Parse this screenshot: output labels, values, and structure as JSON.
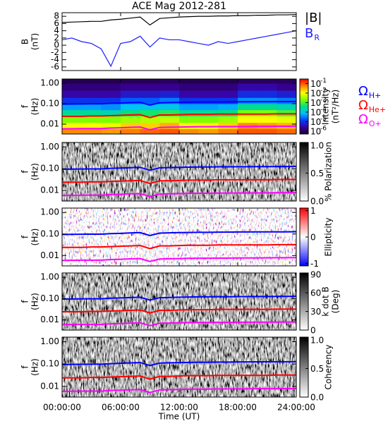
{
  "chart_data": [
    {
      "type": "line",
      "title": "ACE Mag 2012-281",
      "ylabel": [
        "B",
        "(nT)"
      ],
      "ylim": [
        -7,
        9
      ],
      "yticks": [
        8,
        6,
        4,
        2,
        0,
        -2,
        -4,
        -6
      ],
      "x": [
        0,
        1,
        2,
        3,
        4,
        5,
        6,
        7,
        8,
        9,
        10,
        11,
        12,
        13,
        14,
        15,
        16,
        17,
        18,
        19,
        20,
        21,
        22,
        23,
        24
      ],
      "series": [
        {
          "name": "|B|",
          "color": "#000000",
          "values": [
            6.3,
            6.4,
            6.5,
            6.6,
            6.6,
            7.0,
            7.2,
            7.5,
            7.8,
            5.6,
            7.4,
            7.6,
            7.8,
            7.9,
            8.0,
            8.0,
            8.1,
            8.1,
            8.2,
            8.2,
            8.3,
            8.3,
            8.4,
            8.4,
            8.5
          ]
        },
        {
          "name": "B",
          "subscript": "R",
          "color": "#1f1fff",
          "values": [
            1.5,
            2.0,
            1.0,
            0.5,
            -1.0,
            -5.8,
            0.5,
            1.0,
            2.5,
            -0.5,
            2.0,
            1.5,
            1.5,
            1.0,
            0.5,
            0.0,
            1.0,
            0.5,
            1.0,
            1.5,
            2.0,
            2.5,
            3.0,
            3.5,
            4.0
          ]
        }
      ]
    },
    {
      "type": "heatmap",
      "ylabel": [
        "f",
        "(Hz)"
      ],
      "log": true,
      "ylim": [
        0.0033,
        1.6
      ],
      "yticks": [
        {
          "value": 1,
          "label": "1.00"
        },
        {
          "value": 0.1,
          "label": "0.10"
        },
        0.01
      ],
      "t_bins": [
        0,
        2,
        4,
        6,
        8,
        10,
        12,
        14,
        16,
        18,
        20,
        22,
        24
      ],
      "f_bins": [
        0.0033,
        0.006,
        0.012,
        0.025,
        0.05,
        0.1,
        0.2,
        0.45,
        1.0,
        1.6
      ],
      "z": [
        [
          0.05,
          0.05,
          0.04,
          0.06,
          0.08,
          0.1,
          0.05,
          0.04,
          0.06,
          0.1,
          0.1,
          0.08
        ],
        [
          0.01,
          0.01,
          0.008,
          0.02,
          0.02,
          0.03,
          0.01,
          0.01,
          0.02,
          0.05,
          0.04,
          0.03
        ],
        [
          0.002,
          0.002,
          0.002,
          0.003,
          0.004,
          0.005,
          0.002,
          0.002,
          0.003,
          0.01,
          0.01,
          0.008
        ],
        [
          0.0003,
          0.0003,
          0.0002,
          0.0004,
          0.0005,
          0.0006,
          0.0003,
          0.0003,
          0.0004,
          0.002,
          0.002,
          0.001
        ],
        [
          5e-05,
          5e-05,
          4e-05,
          8e-05,
          0.0001,
          0.0001,
          5e-05,
          5e-05,
          6e-05,
          0.0003,
          0.0003,
          0.0002
        ],
        [
          1e-05,
          1e-05,
          1e-05,
          2e-05,
          2e-05,
          3e-05,
          1e-05,
          1e-05,
          1e-05,
          4e-05,
          4e-05,
          3e-05
        ],
        [
          3e-06,
          3e-06,
          3e-06,
          5e-06,
          5e-06,
          6e-06,
          3e-06,
          3e-06,
          3e-06,
          8e-06,
          8e-06,
          6e-06
        ],
        [
          1.5e-06,
          1.5e-06,
          1.5e-06,
          2e-06,
          2e-06,
          2e-06,
          1.5e-06,
          1.5e-06,
          1.5e-06,
          3e-06,
          3e-06,
          2e-06
        ],
        [
          8e-07,
          8e-07,
          8e-07,
          9e-07,
          9e-07,
          1e-06,
          8e-07,
          8e-07,
          8e-07,
          1e-06,
          1e-06,
          1e-06
        ]
      ],
      "colormap_name": "rainbow",
      "colormap": [
        "#1a0030",
        "#3b00a0",
        "#0040ff",
        "#00c0ff",
        "#00e080",
        "#80ff00",
        "#ffff00",
        "#ff8000",
        "#ff0000"
      ],
      "colorbar": {
        "log": true,
        "lim": [
          5e-07,
          0.3
        ],
        "label": [
          "Intensity",
          "(nT²/Hz)"
        ],
        "ticks": [
          {
            "value": 0.1,
            "label": "10",
            "exponent": "-1"
          },
          {
            "value": 0.01,
            "label": "10",
            "exponent": "-2"
          },
          {
            "value": 0.001,
            "label": "10",
            "exponent": "-3"
          },
          {
            "value": 0.0001,
            "label": "10",
            "exponent": "-4"
          },
          {
            "value": 1e-05,
            "label": "10",
            "exponent": "-5"
          },
          {
            "value": 1e-06,
            "label": "10",
            "exponent": "-6"
          }
        ]
      },
      "x": [
        0,
        1,
        2,
        3,
        4,
        5,
        6,
        7,
        8,
        9,
        10,
        11,
        12,
        13,
        14,
        15,
        16,
        17,
        18,
        19,
        20,
        21,
        22,
        23,
        24
      ],
      "series": [
        {
          "name": "Ω",
          "subscript": "H+",
          "color": "#0000ff",
          "values": [
            0.095,
            0.096,
            0.097,
            0.098,
            0.098,
            0.104,
            0.107,
            0.112,
            0.116,
            0.085,
            0.11,
            0.113,
            0.116,
            0.118,
            0.12,
            0.12,
            0.122,
            0.122,
            0.124,
            0.124,
            0.125,
            0.125,
            0.126,
            0.126,
            0.128
          ]
        },
        {
          "name": "Ω",
          "subscript": "He+",
          "color": "#ff0000",
          "values": [
            0.024,
            0.024,
            0.024,
            0.025,
            0.025,
            0.026,
            0.027,
            0.028,
            0.029,
            0.021,
            0.028,
            0.028,
            0.029,
            0.03,
            0.03,
            0.03,
            0.031,
            0.031,
            0.031,
            0.031,
            0.031,
            0.031,
            0.032,
            0.032,
            0.032
          ]
        },
        {
          "name": "Ω",
          "subscript": "O+",
          "color": "#ff00ff",
          "values": [
            0.0059,
            0.006,
            0.0061,
            0.0061,
            0.0061,
            0.0065,
            0.0067,
            0.007,
            0.0072,
            0.0053,
            0.0069,
            0.0071,
            0.0072,
            0.0074,
            0.0075,
            0.0075,
            0.0076,
            0.0076,
            0.0077,
            0.0077,
            0.0078,
            0.0078,
            0.0079,
            0.0079,
            0.008
          ]
        }
      ]
    },
    {
      "type": "spectrogram",
      "ylabel": [
        "f",
        "(Hz)"
      ],
      "log": true,
      "ylim": [
        0.0033,
        1.6
      ],
      "yticks": [
        {
          "value": 1,
          "label": "1.00"
        },
        {
          "value": 0.1,
          "label": "0.10"
        },
        0.01
      ],
      "colormap_name": "gray",
      "colormap": [
        "#ffffff",
        "#000000"
      ],
      "colorbar": {
        "log": false,
        "lim": [
          0,
          1.05
        ],
        "label": [
          "% Polarization"
        ],
        "ticks": [
          {
            "value": 1,
            "label": "1.0"
          },
          0.5,
          {
            "value": 0,
            "label": "0.0"
          }
        ]
      }
    },
    {
      "type": "spectrogram",
      "ylabel": [
        "f",
        "(Hz)"
      ],
      "log": true,
      "ylim": [
        0.0033,
        1.6
      ],
      "yticks": [
        {
          "value": 1,
          "label": "1.00"
        },
        {
          "value": 0.1,
          "label": "0.10"
        },
        0.01
      ],
      "colormap_name": "bwr",
      "colormap": [
        "#0000ff",
        "#ffffff",
        "#ff0000"
      ],
      "colorbar": {
        "log": false,
        "lim": [
          -1.1,
          1.1
        ],
        "label": [
          "Ellipticity"
        ],
        "ticks": [
          1,
          0,
          -1
        ]
      }
    },
    {
      "type": "spectrogram",
      "ylabel": [
        "f",
        "(Hz)"
      ],
      "log": true,
      "ylim": [
        0.0033,
        1.6
      ],
      "yticks": [
        {
          "value": 1,
          "label": "1.00"
        },
        {
          "value": 0.1,
          "label": "0.10"
        },
        0.01
      ],
      "colormap_name": "gray",
      "colormap": [
        "#ffffff",
        "#000000"
      ],
      "colorbar": {
        "log": false,
        "lim": [
          0,
          92
        ],
        "label": [
          "k dot B",
          "(Deg)"
        ],
        "ticks": [
          90,
          60,
          30,
          0
        ]
      }
    },
    {
      "type": "spectrogram",
      "ylabel": [
        "f",
        "(Hz)"
      ],
      "log": true,
      "ylim": [
        0.0033,
        1.6
      ],
      "yticks": [
        {
          "value": 1,
          "label": "1.00"
        },
        {
          "value": 0.1,
          "label": "0.10"
        },
        0.01
      ],
      "colormap_name": "gray",
      "colormap": [
        "#ffffff",
        "#000000"
      ],
      "colorbar": {
        "log": false,
        "lim": [
          0,
          1.05
        ],
        "label": [
          "Coherency"
        ],
        "ticks": [
          {
            "value": 1,
            "label": "1.0"
          },
          0.5,
          {
            "value": 0,
            "label": "0.0"
          }
        ]
      },
      "xlabel": "Time (UT)",
      "xlim": [
        0,
        24
      ],
      "xticks": [
        {
          "value": 0,
          "label": "00:00:00"
        },
        {
          "value": 6,
          "label": "06:00:00"
        },
        {
          "value": 12,
          "label": "12:00:00"
        },
        {
          "value": 18,
          "label": "18:00:00"
        },
        {
          "value": 24,
          "label": "24:00:00"
        }
      ]
    }
  ]
}
